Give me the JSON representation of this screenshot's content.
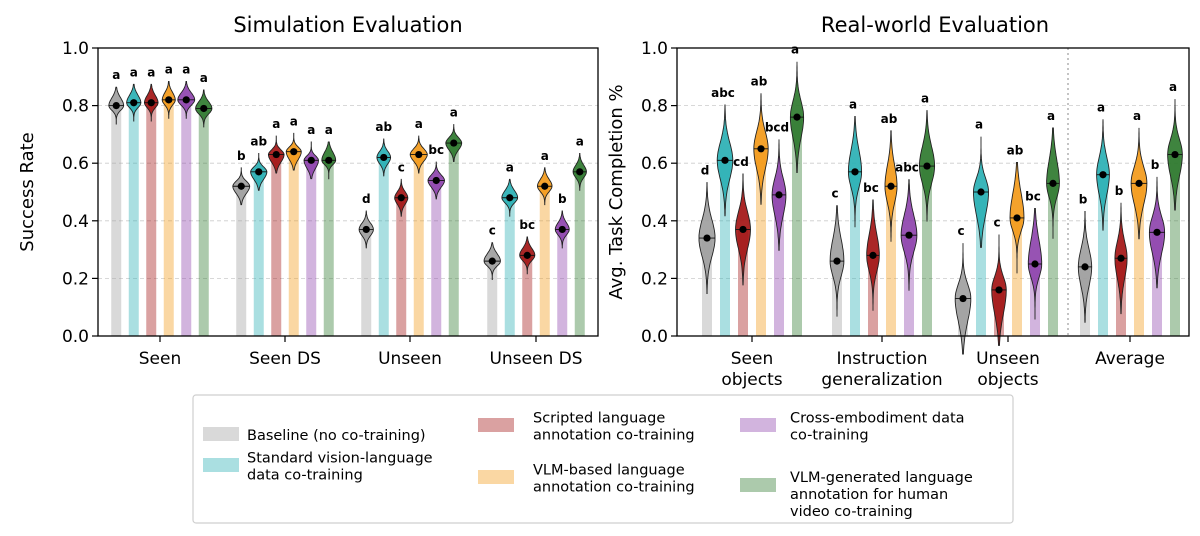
{
  "colors": {
    "Baseline": "#a0a0a0",
    "Standard VL": "#2ab0b4",
    "Scripted": "#a31515",
    "VLM-based": "#f39a1a",
    "Cross-embodiment": "#8e44ad",
    "Human video": "#2f7a2f"
  },
  "legend": [
    {
      "key": "Baseline",
      "text": [
        "Baseline (no co-training)"
      ]
    },
    {
      "key": "Standard VL",
      "text": [
        "Standard vision-language",
        "data co-training"
      ]
    },
    {
      "key": "Scripted",
      "text": [
        "Scripted language",
        "annotation co-training"
      ]
    },
    {
      "key": "VLM-based",
      "text": [
        "VLM-based language",
        "annotation co-training"
      ]
    },
    {
      "key": "Cross-embodiment",
      "text": [
        "Cross-embodiment data",
        "co-training"
      ]
    },
    {
      "key": "Human video",
      "text": [
        "VLM-generated language",
        "annotation for human",
        "video co-training"
      ]
    }
  ],
  "chart_data": [
    {
      "type": "bar",
      "title": "Simulation Evaluation",
      "ylabel": "Success Rate",
      "ylim": [
        0,
        1.0
      ],
      "yticks": [
        "0.0",
        "0.2",
        "0.4",
        "0.6",
        "0.8",
        "1.0"
      ],
      "grid": "horizontal dashed",
      "categories": [
        "Seen",
        "Seen DS",
        "Unseen",
        "Unseen DS"
      ],
      "series": [
        {
          "name": "Baseline",
          "values": [
            0.8,
            0.52,
            0.37,
            0.26
          ],
          "letters": [
            "a",
            "b",
            "d",
            "c"
          ]
        },
        {
          "name": "Standard VL",
          "values": [
            0.81,
            0.57,
            0.62,
            0.48
          ],
          "letters": [
            "a",
            "ab",
            "ab",
            "a"
          ]
        },
        {
          "name": "Scripted",
          "values": [
            0.81,
            0.63,
            0.48,
            0.28
          ],
          "letters": [
            "a",
            "a",
            "c",
            "bc"
          ]
        },
        {
          "name": "VLM-based",
          "values": [
            0.82,
            0.64,
            0.63,
            0.52
          ],
          "letters": [
            "a",
            "a",
            "a",
            "a"
          ]
        },
        {
          "name": "Cross-embodiment",
          "values": [
            0.82,
            0.61,
            0.54,
            0.37
          ],
          "letters": [
            "a",
            "a",
            "bc",
            "b"
          ]
        },
        {
          "name": "Human video",
          "values": [
            0.79,
            0.61,
            0.67,
            0.57
          ],
          "letters": [
            "a",
            "a",
            "a",
            "a"
          ]
        }
      ]
    },
    {
      "type": "bar",
      "title": "Real-world Evaluation",
      "ylabel": "Avg. Task Completion %",
      "ylim": [
        0,
        1.0
      ],
      "yticks": [
        "0.0",
        "0.2",
        "0.4",
        "0.6",
        "0.8",
        "1.0"
      ],
      "grid": "horizontal dashed",
      "categories": [
        [
          "Seen",
          "objects"
        ],
        [
          "Instruction",
          "generalization"
        ],
        [
          "Unseen",
          "objects"
        ],
        [
          "Average"
        ]
      ],
      "series": [
        {
          "name": "Baseline",
          "values": [
            0.34,
            0.26,
            0.13,
            0.24
          ],
          "letters": [
            "d",
            "c",
            "c",
            "b"
          ]
        },
        {
          "name": "Standard VL",
          "values": [
            0.61,
            0.57,
            0.5,
            0.56
          ],
          "letters": [
            "abc",
            "a",
            "a",
            "a"
          ]
        },
        {
          "name": "Scripted",
          "values": [
            0.37,
            0.28,
            0.16,
            0.27
          ],
          "letters": [
            "cd",
            "bc",
            "c",
            "b"
          ]
        },
        {
          "name": "VLM-based",
          "values": [
            0.65,
            0.52,
            0.41,
            0.53
          ],
          "letters": [
            "ab",
            "ab",
            "ab",
            "a"
          ]
        },
        {
          "name": "Cross-embodiment",
          "values": [
            0.49,
            0.35,
            0.25,
            0.36
          ],
          "letters": [
            "bcd",
            "abc",
            "bc",
            "b"
          ]
        },
        {
          "name": "Human video",
          "values": [
            0.76,
            0.59,
            0.53,
            0.63
          ],
          "letters": [
            "a",
            "a",
            "a",
            "a"
          ]
        }
      ]
    }
  ]
}
